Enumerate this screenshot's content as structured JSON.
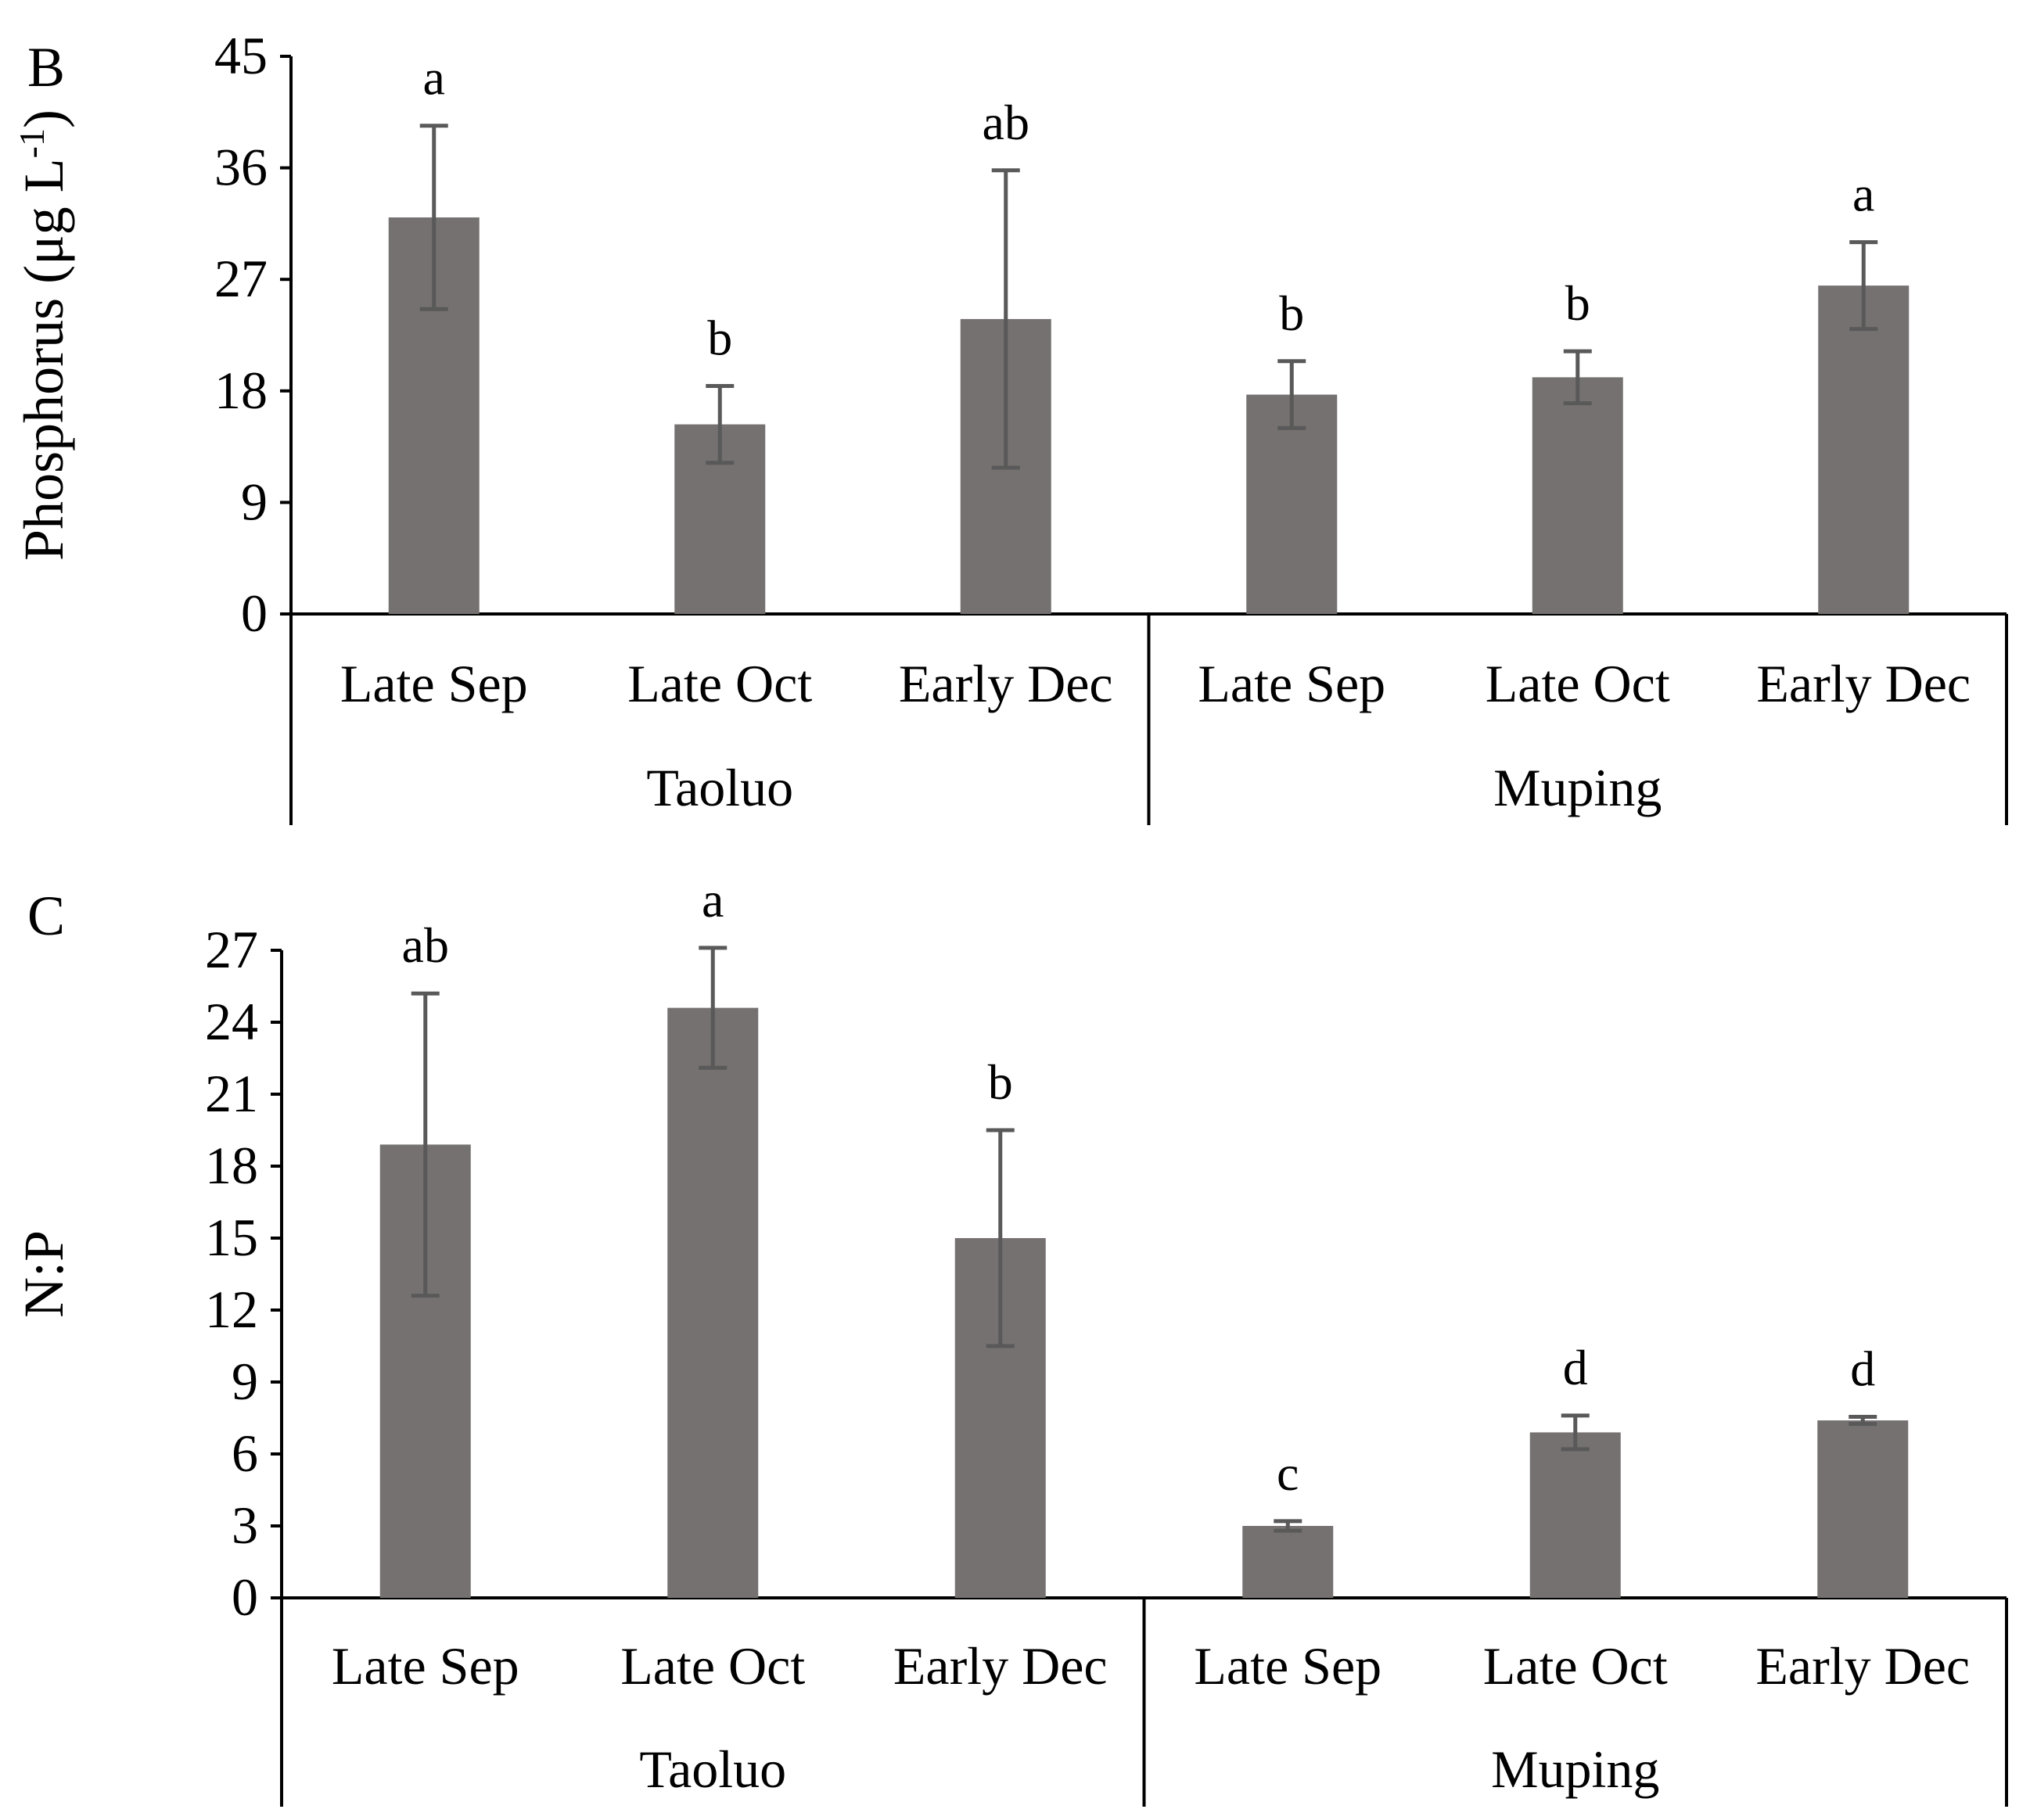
{
  "chart_data": [
    {
      "type": "bar",
      "panel_label": "B",
      "ylabel_main": "Phosphorus (μg L",
      "ylabel_sup": "-1",
      "ylabel_close": ")",
      "ylim": [
        0,
        45
      ],
      "yticks": [
        "0",
        "9",
        "18",
        "27",
        "36",
        "45"
      ],
      "groups": [
        "Taoluo",
        "Muping"
      ],
      "categories": [
        "Late Sep",
        "Late Oct",
        "Early Dec",
        "Late Sep",
        "Late Oct",
        "Early Dec"
      ],
      "values": [
        32.0,
        15.3,
        23.8,
        17.7,
        19.1,
        26.5
      ],
      "errors": [
        7.4,
        3.1,
        12.0,
        2.7,
        2.1,
        3.5
      ],
      "letters": [
        "a",
        "b",
        "ab",
        "b",
        "b",
        "a"
      ],
      "bar_color": "#767171",
      "error_color": "#595959"
    },
    {
      "type": "bar",
      "panel_label": "C",
      "ylabel_main": "N:P",
      "ylabel_sup": "",
      "ylabel_close": "",
      "ylim": [
        0,
        27
      ],
      "yticks": [
        "0",
        "3",
        "6",
        "9",
        "12",
        "15",
        "18",
        "21",
        "24",
        "27"
      ],
      "groups": [
        "Taoluo",
        "Muping"
      ],
      "categories": [
        "Late Sep",
        "Late Oct",
        "Early Dec",
        "Late Sep",
        "Late Oct",
        "Early Dec"
      ],
      "values": [
        18.9,
        24.6,
        15.0,
        3.0,
        6.9,
        7.4
      ],
      "errors": [
        6.3,
        2.5,
        4.5,
        0.2,
        0.7,
        0.15
      ],
      "letters": [
        "ab",
        "a",
        "b",
        "c",
        "d",
        "d"
      ],
      "bar_color": "#767171",
      "error_color": "#595959"
    }
  ]
}
